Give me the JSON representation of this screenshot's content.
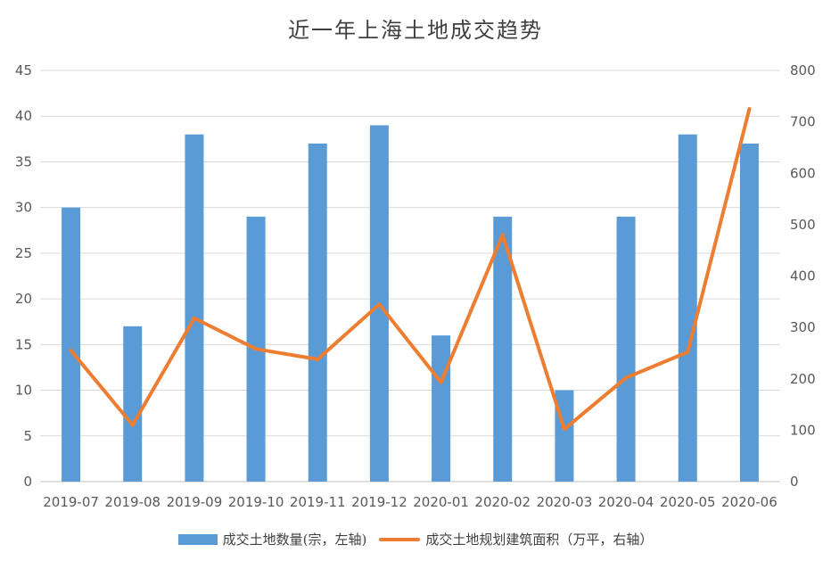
{
  "chart_data": {
    "type": "bar+line",
    "title": "近一年上海土地成交趋势",
    "categories": [
      "2019-07",
      "2019-08",
      "2019-09",
      "2019-10",
      "2019-11",
      "2019-12",
      "2020-01",
      "2020-02",
      "2020-03",
      "2020-04",
      "2020-05",
      "2020-06"
    ],
    "series": [
      {
        "name": "成交土地数量(宗，左轴)",
        "type": "bar",
        "axis": "left",
        "color": "#5b9bd5",
        "values": [
          30,
          17,
          38,
          29,
          37,
          39,
          16,
          29,
          10,
          29,
          38,
          37
        ]
      },
      {
        "name": "成交土地规划建筑面积（万平，右轴）",
        "type": "line",
        "axis": "right",
        "color": "#ed7d31",
        "values": [
          255,
          110,
          318,
          258,
          238,
          345,
          193,
          480,
          102,
          202,
          252,
          725
        ]
      }
    ],
    "y_left": {
      "min": 0,
      "max": 45,
      "step": 5,
      "ticks": [
        "0",
        "5",
        "10",
        "15",
        "20",
        "25",
        "30",
        "35",
        "40",
        "45"
      ]
    },
    "y_right": {
      "min": 0,
      "max": 800,
      "step": 100,
      "ticks": [
        "0",
        "100",
        "200",
        "300",
        "400",
        "500",
        "600",
        "700",
        "800"
      ]
    },
    "grid": true,
    "legend_position": "bottom"
  }
}
